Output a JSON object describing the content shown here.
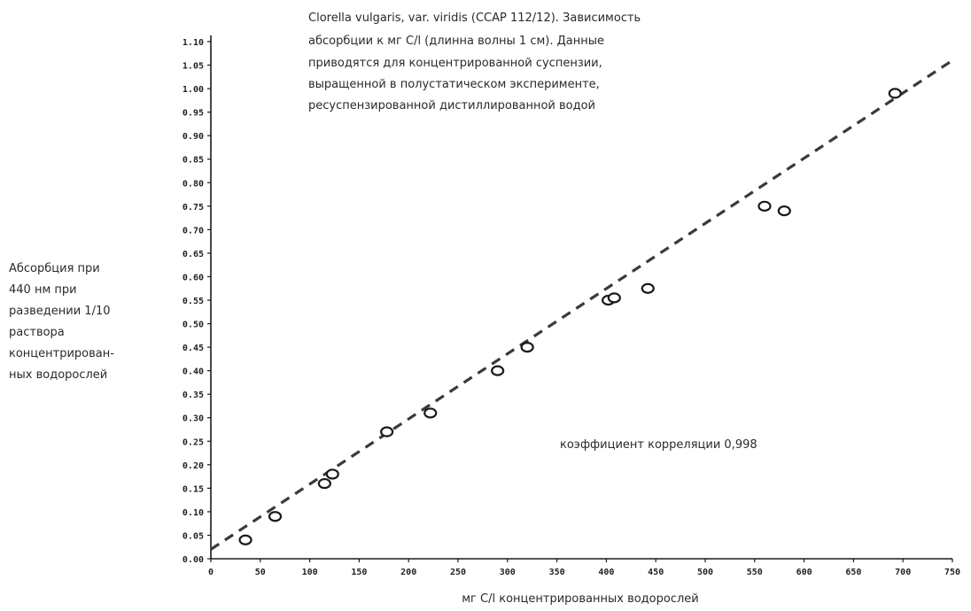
{
  "chart_data": {
    "type": "scatter",
    "title_lines": [
      "Clorella vulgaris, var. viridis (CCAP 112/12). Зависимость",
      "абсорбции к мг С/l (длинна волны 1 см). Данные",
      "приводятся для концентрированной суспензии,",
      "выращенной в полустатическом эксперименте,",
      "ресуспензированной дистиллированной водой"
    ],
    "xlabel": "мг С/l концентрированных водорослей",
    "ylabel_lines": [
      "Абсорбция при",
      "440 нм при",
      "разведении 1/10",
      "раствора",
      "концентрирован-",
      "ных водорослей"
    ],
    "annotation": "коэффициент корреляции 0,998",
    "xlim": [
      0,
      750
    ],
    "ylim": [
      0,
      1.1
    ],
    "x_ticks": [
      0,
      50,
      100,
      150,
      200,
      250,
      300,
      350,
      400,
      450,
      500,
      550,
      600,
      650,
      700,
      750
    ],
    "x_tick_labels": [
      "0",
      "50",
      "100",
      "150",
      "200",
      "250",
      "300",
      "350",
      "400",
      "450",
      "500",
      "550",
      "600",
      "650",
      "700",
      "750"
    ],
    "y_ticks": [
      0,
      0.05,
      0.1,
      0.15,
      0.2,
      0.25,
      0.3,
      0.35,
      0.4,
      0.45,
      0.5,
      0.55,
      0.6,
      0.65,
      0.7,
      0.75,
      0.8,
      0.85,
      0.9,
      0.95,
      1.0,
      1.05,
      1.1
    ],
    "y_tick_labels": [
      "0.00",
      "0.05",
      "0.10",
      "0.15",
      "0.20",
      "0.25",
      "0.30",
      "0.35",
      "0.40",
      "0.45",
      "0.50",
      "0.55",
      "0.60",
      "0.65",
      "0.70",
      "0.75",
      "0.80",
      "0.85",
      "0.90",
      "0.95",
      "1.00",
      "1.05",
      "1.10"
    ],
    "points": [
      {
        "x": 35,
        "y": 0.04
      },
      {
        "x": 65,
        "y": 0.09
      },
      {
        "x": 115,
        "y": 0.16
      },
      {
        "x": 123,
        "y": 0.18
      },
      {
        "x": 178,
        "y": 0.27
      },
      {
        "x": 222,
        "y": 0.31
      },
      {
        "x": 290,
        "y": 0.4
      },
      {
        "x": 320,
        "y": 0.45
      },
      {
        "x": 402,
        "y": 0.55
      },
      {
        "x": 408,
        "y": 0.555
      },
      {
        "x": 442,
        "y": 0.575
      },
      {
        "x": 560,
        "y": 0.75
      },
      {
        "x": 580,
        "y": 0.74
      },
      {
        "x": 692,
        "y": 0.99
      }
    ],
    "fit_line": {
      "x": [
        0,
        750
      ],
      "y": [
        0.02,
        1.06
      ]
    },
    "grid": false,
    "colors": {
      "marker": "#1a1a1a",
      "fit_line": "#3a3a3a",
      "axis": "#1a1a1a",
      "text": "#2a2a2a"
    }
  }
}
